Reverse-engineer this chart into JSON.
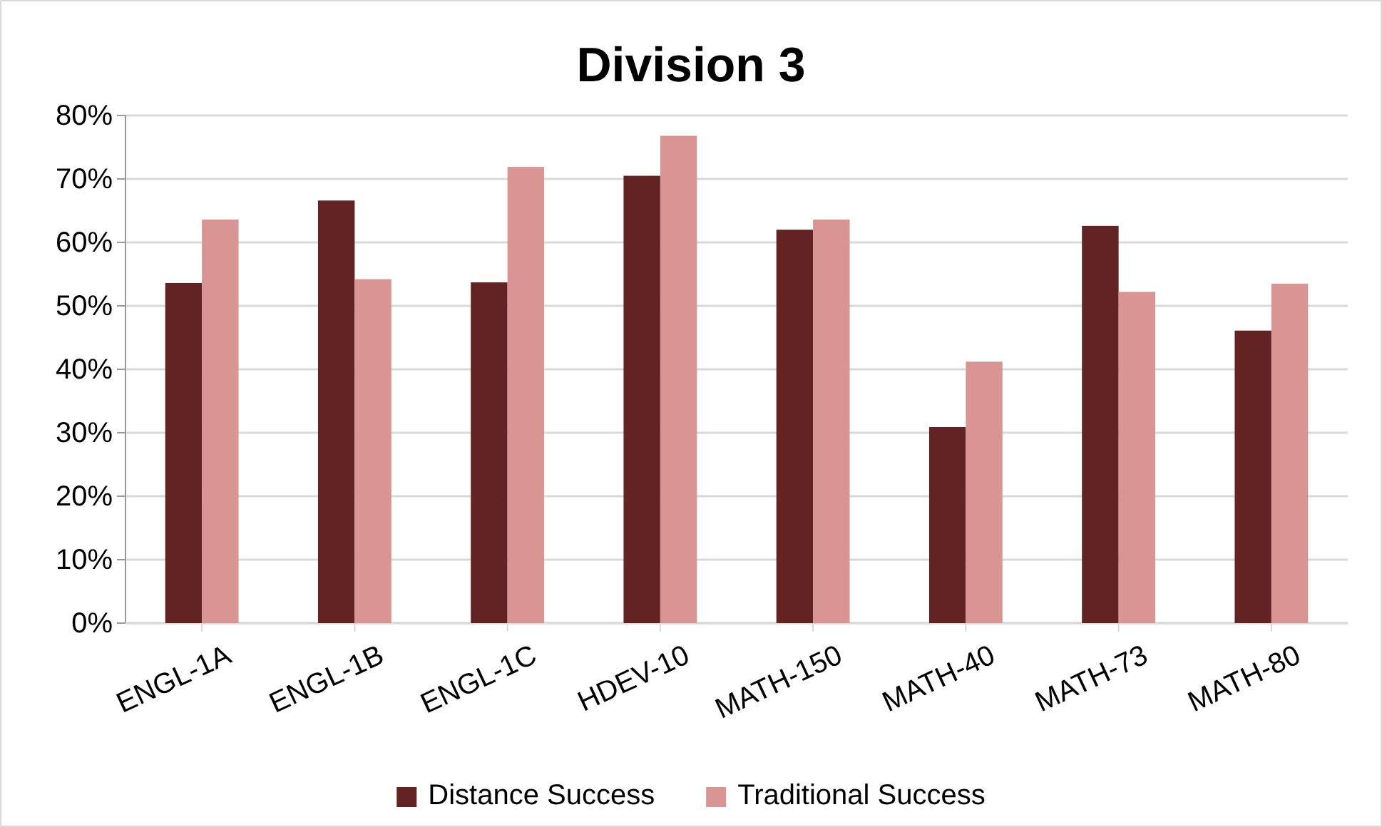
{
  "chart_data": {
    "type": "bar",
    "title": "Division 3",
    "categories": [
      "ENGL-1A",
      "ENGL-1B",
      "ENGL-1C",
      "HDEV-10",
      "MATH-150",
      "MATH-40",
      "MATH-73",
      "MATH-80"
    ],
    "series": [
      {
        "name": "Distance Success",
        "color": "#632323",
        "values": [
          53.6,
          66.6,
          53.7,
          70.5,
          62.0,
          30.9,
          62.6,
          46.1
        ]
      },
      {
        "name": "Traditional Success",
        "color": "#d99594",
        "values": [
          63.6,
          54.2,
          71.9,
          76.8,
          63.6,
          41.2,
          52.2,
          53.5
        ]
      }
    ],
    "ylim": [
      0,
      80
    ],
    "yticks": [
      {
        "value": 0,
        "label": "0%"
      },
      {
        "value": 10,
        "label": "10%"
      },
      {
        "value": 20,
        "label": "20%"
      },
      {
        "value": 30,
        "label": "30%"
      },
      {
        "value": 40,
        "label": "40%"
      },
      {
        "value": 50,
        "label": "50%"
      },
      {
        "value": 60,
        "label": "60%"
      },
      {
        "value": 70,
        "label": "70%"
      },
      {
        "value": 80,
        "label": "80%"
      }
    ],
    "grid": "y",
    "legend": "bottom"
  }
}
